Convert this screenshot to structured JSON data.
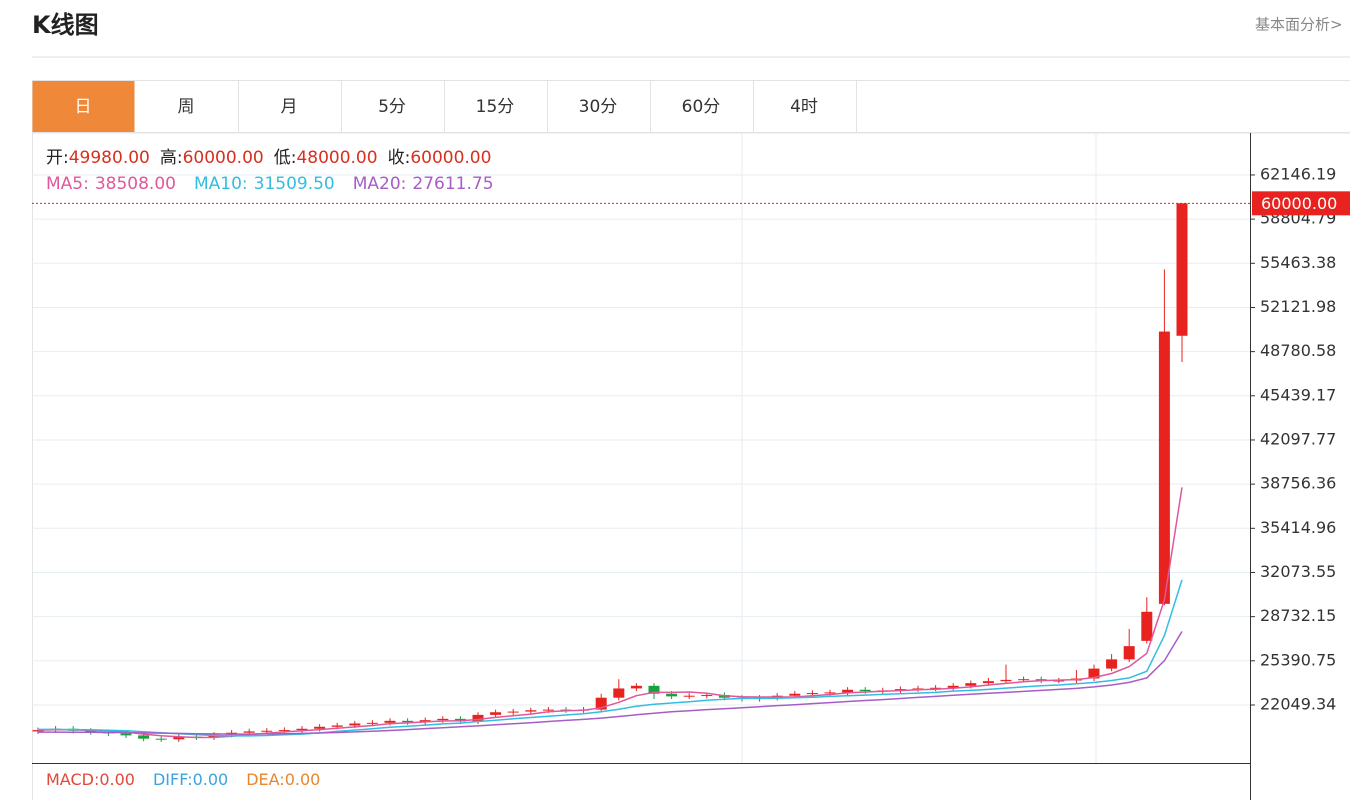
{
  "header": {
    "title": "K线图",
    "link": "基本面分析>"
  },
  "tabs": [
    {
      "label": "日",
      "active": true
    },
    {
      "label": "周",
      "active": false
    },
    {
      "label": "月",
      "active": false
    },
    {
      "label": "5分",
      "active": false
    },
    {
      "label": "15分",
      "active": false
    },
    {
      "label": "30分",
      "active": false
    },
    {
      "label": "60分",
      "active": false
    },
    {
      "label": "4时",
      "active": false
    }
  ],
  "quote": [
    {
      "label": "开:",
      "value": "49980.00"
    },
    {
      "label": "高:",
      "value": "60000.00"
    },
    {
      "label": "低:",
      "value": "48000.00"
    },
    {
      "label": "收:",
      "value": "60000.00"
    }
  ],
  "macd": [
    {
      "label": "MACD:",
      "value": "0.00",
      "color": "#e2473a"
    },
    {
      "label": "DIFF:",
      "value": "0.00",
      "color": "#3ba3e0"
    },
    {
      "label": "DEA:",
      "value": "0.00",
      "color": "#e8862e"
    }
  ],
  "chart_data": {
    "type": "candlestick",
    "up_color": "#e8231f",
    "down_color": "#18a23a",
    "ylim": [
      17660,
      65320
    ],
    "yticks": [
      62146.19,
      58804.79,
      55463.38,
      52121.98,
      48780.58,
      45439.17,
      42097.77,
      38756.36,
      35414.96,
      32073.55,
      28732.15,
      25390.75,
      22049.34
    ],
    "grid": true,
    "last_price": {
      "value": 60000,
      "label": "60000.00"
    },
    "open": [
      20050,
      20150,
      20250,
      20100,
      20000,
      19900,
      19750,
      19500,
      19450,
      19650,
      19600,
      19800,
      19950,
      20050,
      20100,
      20150,
      20250,
      20400,
      20500,
      20650,
      20700,
      20850,
      20750,
      20900,
      21000,
      20800,
      21300,
      21500,
      21550,
      21650,
      21700,
      21650,
      21700,
      22600,
      23300,
      23500,
      22900,
      22700,
      22750,
      22800,
      22600,
      22500,
      22600,
      22750,
      22900,
      22950,
      23000,
      23200,
      23100,
      23150,
      23250,
      23300,
      23350,
      23500,
      23700,
      23850,
      23950,
      24000,
      23900,
      23900,
      24050,
      24800,
      25500,
      26900,
      29700,
      49980
    ],
    "high": [
      20350,
      20450,
      20450,
      20300,
      20200,
      20100,
      19950,
      19700,
      19850,
      19850,
      20000,
      20150,
      20250,
      20300,
      20350,
      20450,
      20600,
      20700,
      20850,
      20900,
      21050,
      21050,
      21100,
      21200,
      21200,
      21500,
      21700,
      21750,
      21850,
      21900,
      21900,
      21900,
      22900,
      24000,
      23700,
      23700,
      23100,
      22950,
      23000,
      23000,
      22800,
      22800,
      22950,
      23100,
      23150,
      23200,
      23400,
      23400,
      23350,
      23450,
      23500,
      23550,
      23700,
      23900,
      24100,
      25100,
      24200,
      24200,
      24100,
      24700,
      25100,
      25900,
      27800,
      30200,
      55000,
      60000
    ],
    "low": [
      19850,
      19950,
      19900,
      19800,
      19700,
      19550,
      19300,
      19250,
      19250,
      19400,
      19400,
      19600,
      19750,
      19850,
      19900,
      19950,
      20050,
      20200,
      20300,
      20450,
      20500,
      20550,
      20550,
      20700,
      20600,
      20600,
      21100,
      21300,
      21350,
      21450,
      21450,
      21450,
      21500,
      22400,
      23100,
      22500,
      22500,
      22500,
      22550,
      22400,
      22300,
      22300,
      22400,
      22550,
      22700,
      22750,
      22800,
      22900,
      22900,
      22950,
      23050,
      23100,
      23150,
      23300,
      23500,
      23650,
      23750,
      23700,
      23700,
      23700,
      23850,
      24600,
      25300,
      26700,
      29600,
      48000
    ],
    "close": [
      20150,
      20250,
      20100,
      20000,
      19900,
      19750,
      19500,
      19450,
      19650,
      19600,
      19800,
      19950,
      20050,
      20100,
      20150,
      20250,
      20400,
      20500,
      20650,
      20700,
      20850,
      20750,
      20900,
      21000,
      20800,
      21300,
      21500,
      21550,
      21650,
      21700,
      21650,
      21700,
      22600,
      23300,
      23500,
      22900,
      22700,
      22750,
      22800,
      22600,
      22500,
      22600,
      22750,
      22900,
      22950,
      23000,
      23200,
      23100,
      23150,
      23250,
      23300,
      23350,
      23500,
      23700,
      23850,
      23950,
      24000,
      23900,
      23900,
      24050,
      24800,
      25500,
      26500,
      29100,
      50300,
      60000
    ],
    "series": [
      {
        "name": "MA5:",
        "last_label": "38508.00",
        "color": "#e0579b",
        "values": [
          20150,
          20180,
          20170,
          20120,
          20080,
          20000,
          19850,
          19720,
          19650,
          19590,
          19600,
          19690,
          19810,
          19910,
          20010,
          20100,
          20190,
          20290,
          20390,
          20500,
          20640,
          20690,
          20770,
          20840,
          20860,
          20950,
          21110,
          21230,
          21360,
          21540,
          21620,
          21650,
          21840,
          22250,
          22750,
          23000,
          23000,
          23030,
          22930,
          22750,
          22670,
          22650,
          22650,
          22650,
          22740,
          22840,
          22960,
          23030,
          23090,
          23140,
          23200,
          23240,
          23320,
          23420,
          23560,
          23680,
          23800,
          23890,
          23930,
          23970,
          24130,
          24430,
          24950,
          25960,
          30000,
          38508
        ]
      },
      {
        "name": "MA10:",
        "last_label": "31509.50",
        "color": "#34bde0",
        "values": [
          20200,
          20200,
          20190,
          20170,
          20140,
          20100,
          20030,
          19950,
          19880,
          19810,
          19740,
          19710,
          19710,
          19740,
          19800,
          19850,
          19940,
          20050,
          20150,
          20250,
          20370,
          20440,
          20530,
          20620,
          20680,
          20800,
          20900,
          21000,
          21100,
          21200,
          21290,
          21380,
          21530,
          21730,
          21960,
          22100,
          22200,
          22300,
          22400,
          22480,
          22550,
          22550,
          22560,
          22600,
          22630,
          22700,
          22750,
          22800,
          22850,
          22900,
          22950,
          23000,
          23100,
          23150,
          23230,
          23330,
          23420,
          23500,
          23560,
          23650,
          23750,
          23900,
          24100,
          24600,
          27300,
          31509.5
        ]
      },
      {
        "name": "MA20:",
        "last_label": "27611.75",
        "color": "#a75dc6",
        "values": [
          20000,
          20000,
          19990,
          19980,
          19970,
          19960,
          19940,
          19920,
          19900,
          19880,
          19860,
          19850,
          19850,
          19860,
          19880,
          19900,
          19930,
          19970,
          20010,
          20060,
          20120,
          20190,
          20260,
          20330,
          20400,
          20470,
          20550,
          20630,
          20710,
          20800,
          20880,
          20960,
          21060,
          21180,
          21310,
          21420,
          21530,
          21620,
          21700,
          21770,
          21840,
          21920,
          22000,
          22070,
          22150,
          22230,
          22310,
          22390,
          22460,
          22540,
          22620,
          22700,
          22780,
          22860,
          22930,
          23000,
          23080,
          23150,
          23230,
          23300,
          23420,
          23560,
          23760,
          24100,
          25400,
          27611.75
        ]
      }
    ]
  }
}
